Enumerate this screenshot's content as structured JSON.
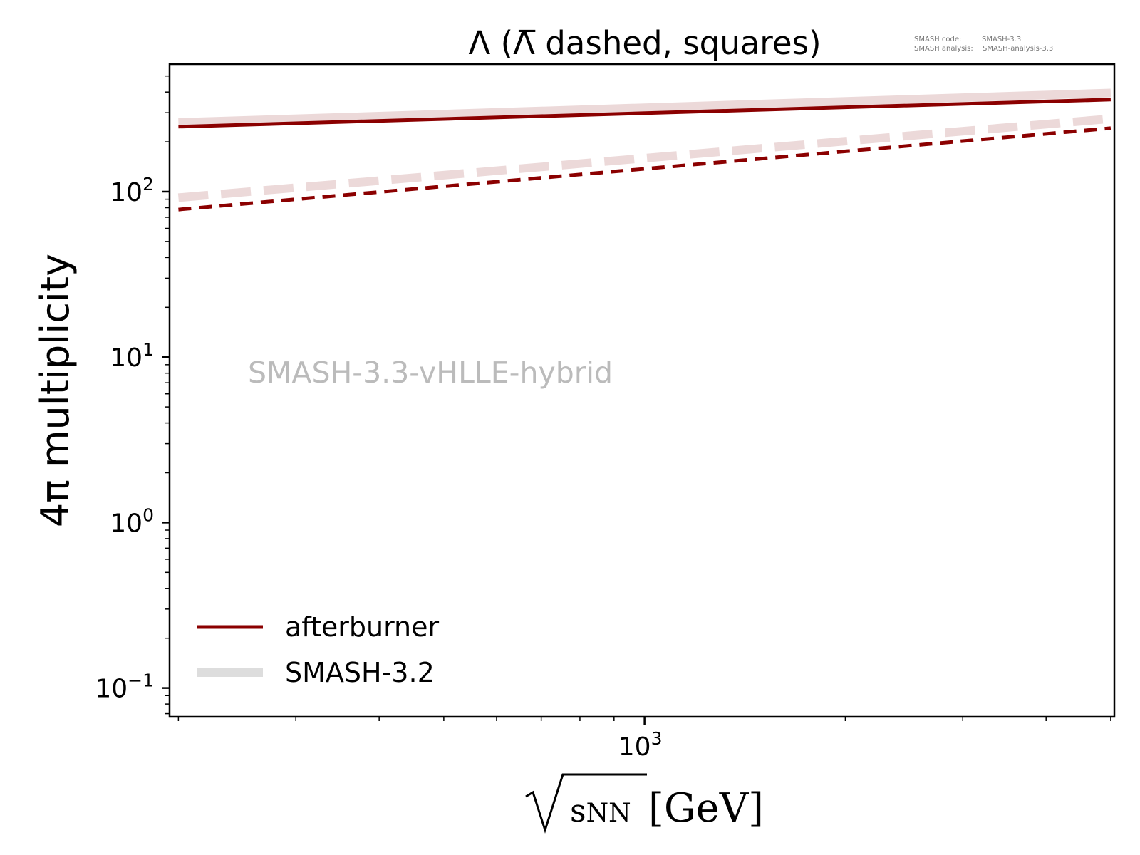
{
  "chart_data": {
    "type": "line",
    "title": "Λ (Λ̅ dashed, squares)",
    "xlabel": {
      "sqrt": "√",
      "var": "s",
      "sub": "NN",
      "unit": "[GeV]"
    },
    "ylabel": "4π multiplicity",
    "xscale": "log",
    "yscale": "log",
    "xlim": [
      194,
      5063
    ],
    "ylim": [
      0.067,
      590
    ],
    "grid": false,
    "x_ticks": [
      {
        "value": 1000,
        "base": "10",
        "exp": "3"
      }
    ],
    "y_ticks": [
      {
        "value": 0.1,
        "base": "10",
        "exp": "−1"
      },
      {
        "value": 1,
        "base": "10",
        "exp": "0"
      },
      {
        "value": 10,
        "base": "10",
        "exp": "1"
      },
      {
        "value": 100,
        "base": "10",
        "exp": "2"
      }
    ],
    "series": [
      {
        "name": "SMASH-3.2 Λ",
        "x": [
          200,
          5000
        ],
        "y": [
          262,
          395
        ],
        "color": "#ecd9d9",
        "style": "solid",
        "width": 12
      },
      {
        "name": "SMASH-3.2 anti-Λ",
        "x": [
          200,
          5000
        ],
        "y": [
          92,
          276
        ],
        "color": "#ecd9d9",
        "style": "dashed",
        "width": 12
      },
      {
        "name": "afterburner Λ",
        "x": [
          200,
          5000
        ],
        "y": [
          247,
          360
        ],
        "color": "#8b0000",
        "style": "solid",
        "width": 5
      },
      {
        "name": "afterburner anti-Λ",
        "x": [
          200,
          5000
        ],
        "y": [
          78,
          242
        ],
        "color": "#8b0000",
        "style": "dashed",
        "width": 5
      }
    ],
    "legend": {
      "placement": "lower-left",
      "entries": [
        {
          "label": "afterburner",
          "color": "#8b0000"
        },
        {
          "label": "SMASH-3.2",
          "color": "#dddddd"
        }
      ]
    },
    "annotation": "SMASH-3.3-vHLLE-hybrid",
    "version_info": {
      "code_label": "SMASH code:",
      "code_value": "SMASH-3.3",
      "analysis_label": "SMASH analysis:",
      "analysis_value": "SMASH-analysis-3.3"
    }
  }
}
